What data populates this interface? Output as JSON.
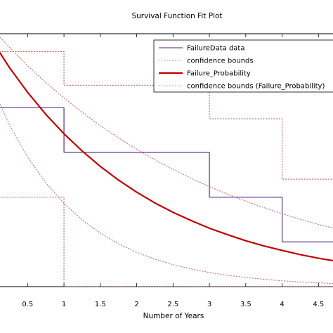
{
  "chart_data": {
    "type": "line",
    "title": "Survival Function Fit Plot",
    "xlabel": "Number of Years",
    "ylabel": "",
    "xlim": [
      0.12,
      4.7
    ],
    "ylim": [
      0,
      1.13
    ],
    "x_ticks": [
      0.5,
      1,
      1.5,
      2,
      2.5,
      3,
      3.5,
      4,
      4.5
    ],
    "x_tick_labels": [
      "0.5",
      "1",
      "1.5",
      "2",
      "2.5",
      "3",
      "3.5",
      "4",
      "4.5"
    ],
    "grid": false,
    "legend_position": "top-right",
    "series": [
      {
        "name": "FailureData data",
        "kind": "step",
        "color": "#4b1f7a",
        "style": "solid",
        "x": [
          0,
          1,
          1,
          3,
          3,
          4,
          4,
          4.7
        ],
        "y": [
          0.8,
          0.8,
          0.6,
          0.6,
          0.4,
          0.4,
          0.2,
          0.2
        ]
      },
      {
        "name": "confidence bounds",
        "kind": "step",
        "color": "#b06060",
        "style": "dotted",
        "bounds": [
          {
            "x": [
              0,
              1,
              1,
              3,
              3,
              4,
              4,
              4.7
            ],
            "y": [
              1.05,
              1.05,
              0.9,
              0.9,
              0.75,
              0.75,
              0.48,
              0.48
            ]
          },
          {
            "x": [
              0,
              1,
              1,
              4.7
            ],
            "y": [
              0.4,
              0.4,
              0.0,
              0.0
            ]
          }
        ]
      },
      {
        "name": "Failure_Probability",
        "kind": "curve",
        "color": "#c00000",
        "style": "solid",
        "x": [
          0,
          0.25,
          0.5,
          0.75,
          1,
          1.25,
          1.5,
          1.75,
          2,
          2.25,
          2.5,
          2.75,
          3,
          3.25,
          3.5,
          3.75,
          4,
          4.25,
          4.5,
          4.7
        ],
        "y": [
          1.104,
          0.979,
          0.868,
          0.77,
          0.683,
          0.606,
          0.537,
          0.476,
          0.422,
          0.374,
          0.332,
          0.295,
          0.261,
          0.232,
          0.205,
          0.182,
          0.162,
          0.143,
          0.127,
          0.116
        ]
      },
      {
        "name": "confidence bounds (Failure_Probability)",
        "kind": "curve",
        "color": "#c07070",
        "style": "dotted",
        "bounds": [
          {
            "x": [
              0,
              0.25,
              0.5,
              0.75,
              1,
              1.25,
              1.5,
              1.75,
              2,
              2.25,
              2.5,
              2.75,
              3,
              3.25,
              3.5,
              3.75,
              4,
              4.25,
              4.5,
              4.7
            ],
            "y": [
              1.157,
              1.069,
              0.987,
              0.912,
              0.843,
              0.779,
              0.719,
              0.665,
              0.614,
              0.567,
              0.524,
              0.484,
              0.447,
              0.413,
              0.382,
              0.353,
              0.326,
              0.301,
              0.278,
              0.262
            ]
          },
          {
            "x": [
              0,
              0.25,
              0.5,
              0.75,
              1,
              1.25,
              1.5,
              1.75,
              2,
              2.25,
              2.5,
              2.75,
              3,
              3.25,
              3.5,
              3.75,
              4,
              4.25,
              4.5,
              4.7
            ],
            "y": [
              0.902,
              0.723,
              0.579,
              0.464,
              0.372,
              0.298,
              0.239,
              0.191,
              0.153,
              0.123,
              0.098,
              0.079,
              0.063,
              0.051,
              0.041,
              0.033,
              0.026,
              0.021,
              0.017,
              0.014
            ]
          }
        ]
      }
    ]
  }
}
